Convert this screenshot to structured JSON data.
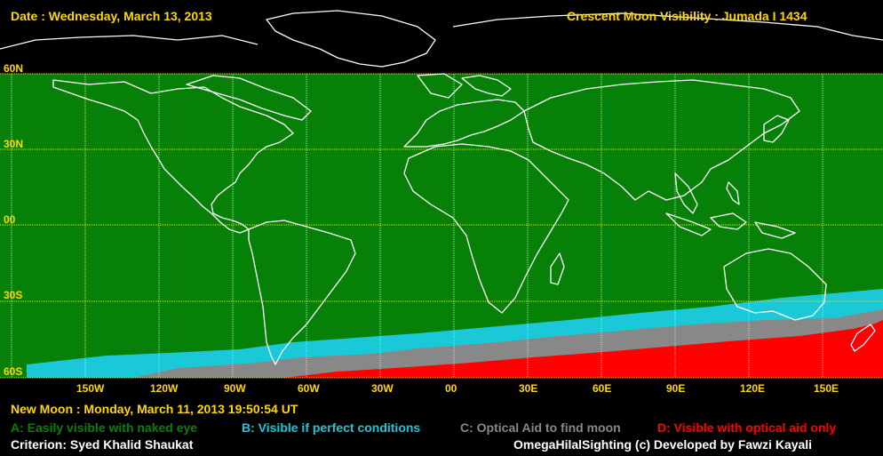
{
  "header": {
    "date": "Date : Wednesday, March 13, 2013",
    "title": "Crescent Moon Visibility : Jumada I  1434"
  },
  "colors": {
    "text": "#ffd700",
    "zone_a": "#078007",
    "zone_b": "#1ac8d8",
    "zone_c": "#888888",
    "zone_d": "#ff0000",
    "grid": "#e8e800",
    "coast": "#ffffff",
    "white_text": "#ffffff"
  },
  "lat_labels": [
    "60N",
    "30N",
    "00",
    "30S",
    "60S"
  ],
  "lon_labels": [
    "150W",
    "120W",
    "90W",
    "60W",
    "30W",
    "00",
    "30E",
    "60E",
    "90E",
    "120E",
    "150E"
  ],
  "new_moon": "New Moon : Monday, March 11, 2013  19:50:54  UT",
  "legend": {
    "a": "A: Easily visible with naked eye",
    "b": "B: Visible if perfect conditions",
    "c": "C: Optical Aid to find moon",
    "d": "D: Visible with optical aid only"
  },
  "criterion": "Criterion: Syed Khalid Shaukat",
  "credit": "OmegaHilalSighting  (c)  Developed by Fawzi Kayali"
}
